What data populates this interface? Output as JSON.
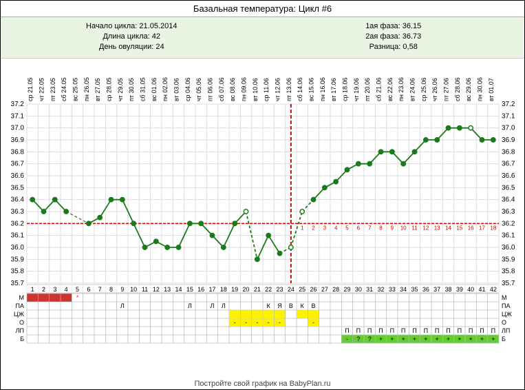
{
  "title": "Базальная температура: Цикл #6",
  "info": {
    "left": {
      "start_label": "Начало цикла:",
      "start_value": "21.05.2014",
      "length_label": "Длина цикла:",
      "length_value": "42",
      "ovu_label": "День овуляции:",
      "ovu_value": "24"
    },
    "right": {
      "phase1_label": "1ая фаза:",
      "phase1_value": "36.15",
      "phase2_label": "2ая фаза:",
      "phase2_value": "36.73",
      "diff_label": "Разница:",
      "diff_value": "0,58"
    }
  },
  "chart": {
    "n_days": 42,
    "y_min": 35.7,
    "y_max": 37.2,
    "y_step": 0.1,
    "coverline": 36.2,
    "ovulation_day": 24,
    "dates": [
      "ср 21.05",
      "чт 22.05",
      "пт 23.05",
      "сб 24.05",
      "вс 25.05",
      "пн 26.05",
      "вт 27.05",
      "ср 28.05",
      "чт 29.05",
      "пт 30.05",
      "сб 31.05",
      "вс 01.06",
      "пн 02.06",
      "вт 03.06",
      "ср 04.06",
      "чт 05.06",
      "пт 06.06",
      "сб 07.06",
      "вс 08.06",
      "пн 09.06",
      "вт 10.06",
      "ср 11.06",
      "чт 12.06",
      "пт 13.06",
      "сб 14.06",
      "вс 15.06",
      "пн 16.06",
      "вт 17.06",
      "ср 18.06",
      "чт 19.06",
      "пт 20.06",
      "сб 21.06",
      "вс 22.06",
      "пн 23.06",
      "вт 24.06",
      "ср 25.06",
      "чт 26.06",
      "пт 27.06",
      "сб 28.06",
      "вс 29.06",
      "пн 30.06",
      "вт 01.07"
    ],
    "temperatures": [
      36.4,
      36.3,
      36.4,
      36.3,
      null,
      36.2,
      36.25,
      36.4,
      36.4,
      36.2,
      36.0,
      36.05,
      36.0,
      36.0,
      36.2,
      36.2,
      36.1,
      36.0,
      36.2,
      36.3,
      35.9,
      36.1,
      35.95,
      36.0,
      36.3,
      36.4,
      36.5,
      36.55,
      36.65,
      36.7,
      36.7,
      36.8,
      36.8,
      36.7,
      36.8,
      36.9,
      36.9,
      37.0,
      37.0,
      37.0,
      36.9,
      36.9
    ],
    "open_markers": [
      20,
      24,
      25,
      40
    ],
    "dashed_segments": [
      [
        4,
        6
      ],
      [
        20,
        21
      ],
      [
        23,
        26
      ]
    ],
    "phase2_day_numbers_start": 24,
    "colors": {
      "grid": "#dcdcdc",
      "grid_strong": "#999",
      "line": "#1b7a1b",
      "marker": "#1b7a1b",
      "coverline": "#cc0000",
      "ovuline": "#cc0000",
      "menses": "#cc3333",
      "menses_star": "#cc3333",
      "yellow": "#fff200",
      "green": "#66cc33",
      "text": "#000",
      "phase2_num": "#cc0000"
    },
    "row_labels": [
      "М",
      "ПА",
      "ЦЖ",
      "О",
      "ЛП",
      "Б"
    ],
    "rows": {
      "menses": [
        1,
        2,
        3,
        4
      ],
      "menses_star_day": 5,
      "pa": {
        "9": "Л",
        "15": "Л",
        "17": "Л",
        "18": "Л",
        "22": "К",
        "23": "Я",
        "24": "В",
        "25": "К",
        "26": "В"
      },
      "cj": {
        "19": "",
        "20": "",
        "21": "",
        "22": "",
        "23": "",
        "25": "",
        "26": ""
      },
      "o_minus": [
        19,
        20,
        21,
        22,
        23,
        26
      ],
      "lp_p": [
        29,
        30,
        31,
        32,
        33,
        34,
        35,
        36,
        37,
        38,
        39,
        40,
        41,
        42
      ],
      "b_plus": {
        "29": "-",
        "30": "?",
        "31": "?",
        "32": "+",
        "33": "+",
        "34": "+",
        "35": "+",
        "36": "+",
        "37": "+",
        "38": "+",
        "39": "+",
        "40": "+",
        "41": "+",
        "42": "+"
      }
    }
  },
  "footer": "Постройте свой график на BabyPlan.ru"
}
